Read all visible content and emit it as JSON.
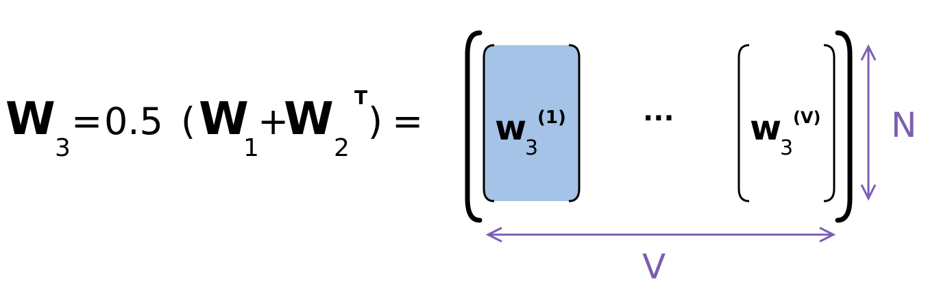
{
  "equation": {
    "lhs_symbol": "W",
    "lhs_subscript": "3",
    "equals": "=",
    "coefficient": "0.5",
    "open_paren": "(",
    "term1_symbol": "W",
    "term1_subscript": "1",
    "plus": "+",
    "term2_symbol": "W",
    "term2_subscript": "2",
    "term2_superscript": "T",
    "close_paren": ")",
    "equals2": "="
  },
  "matrix": {
    "first_column": {
      "symbol": "w",
      "subscript": "3",
      "superscript": "(1)"
    },
    "ellipsis": "···",
    "last_column": {
      "symbol": "w",
      "subscript": "3",
      "superscript": "(V)"
    },
    "highlight_color": "#a4c3e6"
  },
  "dimensions": {
    "height_label": "N",
    "width_label": "V",
    "arrow_color": "#7b5db1"
  }
}
